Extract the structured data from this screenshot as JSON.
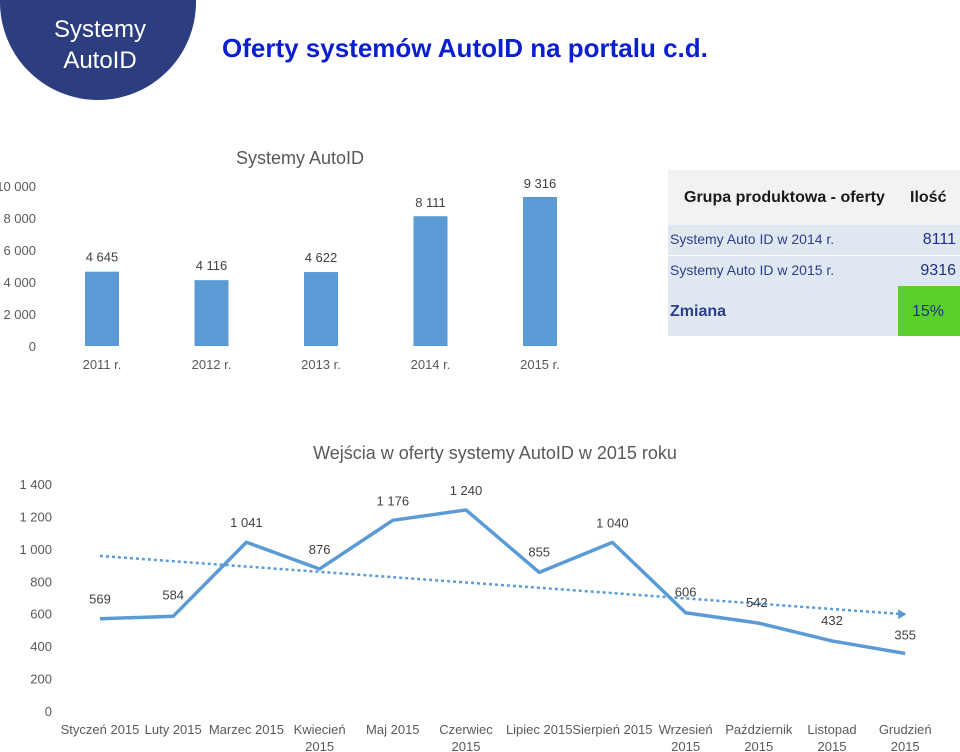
{
  "header": {
    "badge_line1": "Systemy",
    "badge_line2": "AutoID",
    "title": "Oferty systemów AutoID na portalu c.d."
  },
  "colors": {
    "bar": "#5b9bd5",
    "line": "#5b9bd5",
    "trend": "#5b9bd5",
    "badge": "#2c3e80",
    "title": "#0b1fd0",
    "table_header_bg": "#f2f2f2",
    "table_row_bg": "#dfe7f1",
    "change_bg": "#5bcf2a"
  },
  "table": {
    "headers": [
      "Grupa produktowa - oferty",
      "Ilość"
    ],
    "rows": [
      {
        "label": "Systemy Auto ID w 2014 r.",
        "value": "8111"
      },
      {
        "label": "Systemy Auto ID w 2015 r.",
        "value": "9316"
      }
    ],
    "change_label": "Zmiana",
    "change_value": "15%"
  },
  "chart_data": [
    {
      "type": "bar",
      "title": "Systemy AutoID",
      "categories": [
        "2011 r.",
        "2012 r.",
        "2013 r.",
        "2014 r.",
        "2015 r."
      ],
      "values": [
        4645,
        4116,
        4622,
        8111,
        9316
      ],
      "value_labels": [
        "4 645",
        "4 116",
        "4 622",
        "8 111",
        "9 316"
      ],
      "ylim": [
        0,
        10000
      ],
      "yticks": [
        0,
        2000,
        4000,
        6000,
        8000,
        10000
      ],
      "ytick_labels": [
        "0",
        "2 000",
        "4 000",
        "6 000",
        "8 000",
        "10 000"
      ],
      "grid": false
    },
    {
      "type": "line",
      "title": "Wejścia w oferty systemy AutoID w 2015 roku",
      "categories": [
        [
          "Styczeń 2015"
        ],
        [
          "Luty 2015"
        ],
        [
          "Marzec 2015"
        ],
        [
          "Kwiecień",
          "2015"
        ],
        [
          "Maj 2015"
        ],
        [
          "Czerwiec",
          "2015"
        ],
        [
          "Lipiec 2015"
        ],
        [
          "Sierpień 2015"
        ],
        [
          "Wrzesień",
          "2015"
        ],
        [
          "Październik",
          "2015"
        ],
        [
          "Listopad",
          "2015"
        ],
        [
          "Grudzień",
          "2015"
        ]
      ],
      "values": [
        569,
        584,
        1041,
        876,
        1176,
        1240,
        855,
        1040,
        606,
        542,
        432,
        355
      ],
      "value_labels": [
        "569",
        "584",
        "1 041",
        "876",
        "1 176",
        "1 240",
        "855",
        "1 040",
        "606",
        "542",
        "432",
        "355"
      ],
      "trendline": "linear",
      "ylim": [
        0,
        1400
      ],
      "yticks": [
        0,
        200,
        400,
        600,
        800,
        1000,
        1200,
        1400
      ],
      "ytick_labels": [
        "0",
        "200",
        "400",
        "600",
        "800",
        "1 000",
        "1 200",
        "1 400"
      ],
      "grid": false
    }
  ]
}
